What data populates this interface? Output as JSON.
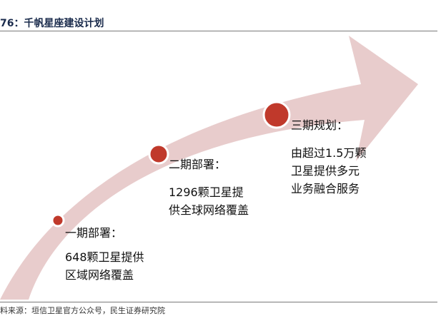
{
  "header": {
    "fragment": "",
    "title": "76：千帆星座建设计划"
  },
  "phases": [
    {
      "title": "一期部署：",
      "lines": [
        "648颗卫星提供",
        "区域网络覆盖"
      ]
    },
    {
      "title": "二期部署：",
      "lines": [
        "1296颗卫星提",
        "供全球网络覆盖"
      ]
    },
    {
      "title": "三期规划：",
      "lines": [
        "由超过1.5万颗",
        "卫星提供多元",
        "业务融合服务"
      ]
    }
  ],
  "source": "料来源：垣信卫星官方公众号，民生证券研究院",
  "colors": {
    "arrow": "#e8cccc",
    "dot": "#c0392b",
    "dot_ring": "#ffffff",
    "title": "#1a2b4c"
  }
}
